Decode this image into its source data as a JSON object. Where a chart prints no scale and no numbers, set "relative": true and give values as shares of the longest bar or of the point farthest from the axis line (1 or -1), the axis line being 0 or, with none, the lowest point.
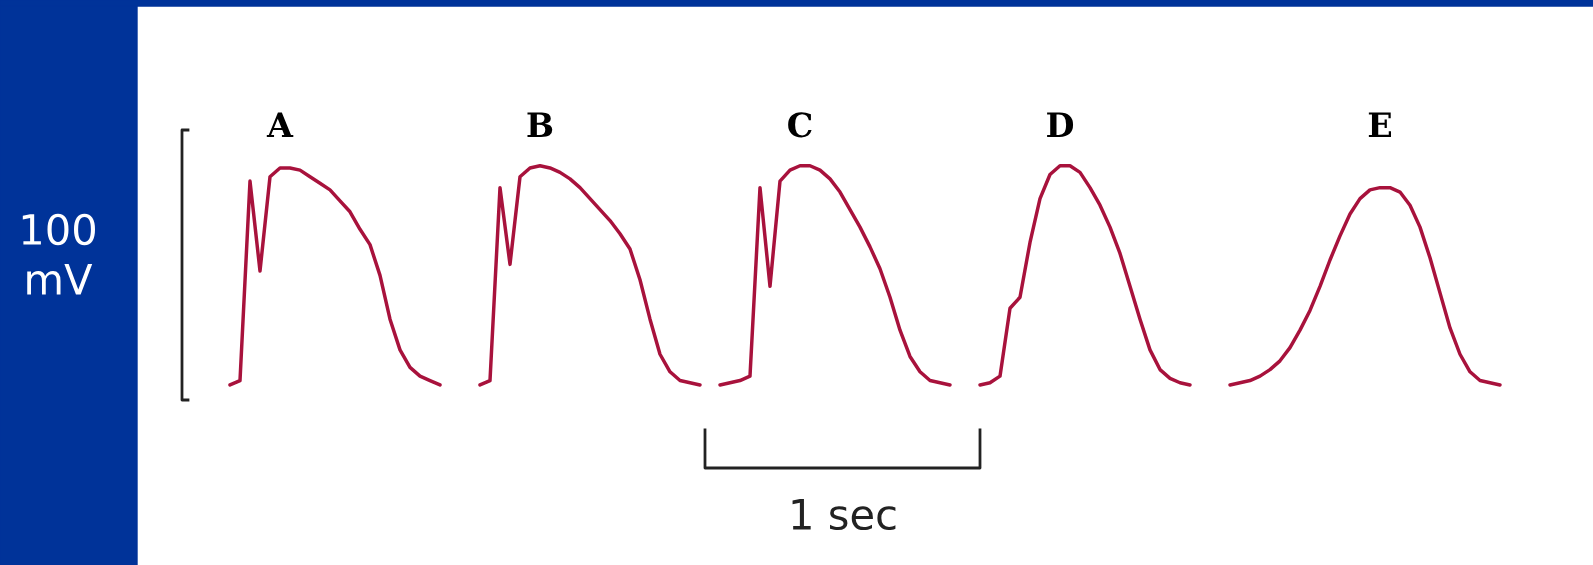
{
  "chart_data": {
    "type": "line",
    "relative": true,
    "categories": [
      null,
      null,
      null,
      null,
      null,
      null,
      null,
      null,
      null,
      null,
      null,
      null,
      null,
      null,
      null,
      null,
      null,
      null,
      null,
      null,
      null,
      null,
      null,
      null,
      null,
      null,
      null,
      null,
      null,
      null,
      null,
      null,
      null,
      null,
      null,
      null,
      null,
      null,
      null,
      null,
      null,
      null,
      null,
      null,
      null,
      null,
      null,
      null,
      null,
      null,
      null,
      null,
      null,
      null,
      null,
      null,
      null,
      null,
      null,
      null,
      null,
      null,
      null,
      null,
      null,
      null,
      null,
      null,
      null,
      null,
      null,
      null,
      null,
      null,
      null,
      null,
      null,
      null,
      null,
      null,
      null,
      null,
      null,
      null,
      null,
      null,
      null,
      null,
      null,
      null,
      null,
      null,
      null,
      null,
      null,
      null,
      null,
      null,
      null,
      null,
      null,
      null,
      null,
      null,
      null,
      null,
      null,
      null,
      null,
      null,
      null,
      null,
      null,
      null,
      null,
      null,
      null,
      null,
      null,
      null,
      null,
      null,
      null,
      null,
      null,
      null,
      null,
      null
    ],
    "series": [
      {
        "name": "A",
        "color": "#a8123c",
        "values": [
          0,
          0.02,
          0.93,
          0.52,
          0.95,
          0.99,
          0.99,
          0.98,
          0.95,
          0.92,
          0.89,
          0.84,
          0.79,
          0.71,
          0.64,
          0.5,
          0.3,
          0.16,
          0.08,
          0.04,
          0.02,
          0,
          null,
          null,
          null,
          null,
          null,
          null,
          null,
          null,
          null,
          null,
          null,
          null,
          null,
          null,
          null,
          null,
          null,
          null,
          null,
          null,
          null,
          null,
          null,
          null,
          null,
          null,
          null,
          null,
          null,
          null,
          null,
          null,
          null,
          null,
          null,
          null,
          null,
          null,
          null,
          null,
          null,
          null,
          null,
          null,
          null,
          null,
          null,
          null,
          null,
          null,
          null,
          null,
          null,
          null,
          null,
          null,
          null,
          null,
          null,
          null,
          null,
          null,
          null,
          null,
          null,
          null,
          null,
          null,
          null,
          null,
          null,
          null,
          null,
          null,
          null,
          null,
          null,
          null,
          null,
          null,
          null,
          null,
          null,
          null,
          null,
          null,
          null,
          null,
          null,
          null,
          null,
          null,
          null,
          null,
          null,
          null,
          null,
          null,
          null,
          null,
          null,
          null,
          null,
          null,
          null,
          null
        ]
      },
      {
        "name": "B",
        "color": "#a8123c",
        "values": [
          null,
          null,
          null,
          null,
          null,
          null,
          null,
          null,
          null,
          null,
          null,
          null,
          null,
          null,
          null,
          null,
          null,
          null,
          null,
          null,
          null,
          null,
          null,
          null,
          null,
          0,
          0.02,
          0.9,
          0.55,
          0.95,
          0.99,
          1,
          0.99,
          0.97,
          0.94,
          0.9,
          0.85,
          0.8,
          0.75,
          0.69,
          0.62,
          0.48,
          0.3,
          0.14,
          0.06,
          0.02,
          0.01,
          0,
          null,
          null,
          null,
          null,
          null,
          null,
          null,
          null,
          null,
          null,
          null,
          null,
          null,
          null,
          null,
          null,
          null,
          null,
          null,
          null,
          null,
          null,
          null,
          null,
          null,
          null,
          null,
          null,
          null,
          null,
          null,
          null,
          null,
          null,
          null,
          null,
          null,
          null,
          null,
          null,
          null,
          null,
          null,
          null,
          null,
          null,
          null,
          null,
          null,
          null,
          null,
          null,
          null,
          null,
          null,
          null,
          null,
          null,
          null,
          null,
          null,
          null,
          null,
          null,
          null,
          null,
          null,
          null,
          null,
          null,
          null,
          null,
          null,
          null,
          null,
          null,
          null,
          null,
          null,
          null
        ]
      },
      {
        "name": "C",
        "color": "#a8123c",
        "values": [
          null,
          null,
          null,
          null,
          null,
          null,
          null,
          null,
          null,
          null,
          null,
          null,
          null,
          null,
          null,
          null,
          null,
          null,
          null,
          null,
          null,
          null,
          null,
          null,
          null,
          null,
          null,
          null,
          null,
          null,
          null,
          null,
          null,
          null,
          null,
          null,
          null,
          null,
          null,
          null,
          null,
          null,
          null,
          null,
          null,
          null,
          null,
          null,
          null,
          0,
          0.01,
          0.02,
          0.04,
          0.9,
          0.45,
          0.93,
          0.98,
          1,
          1,
          0.98,
          0.94,
          0.88,
          0.8,
          0.72,
          0.63,
          0.53,
          0.4,
          0.25,
          0.13,
          0.06,
          0.02,
          0.01,
          0,
          null,
          null,
          null,
          null,
          null,
          null,
          null,
          null,
          null,
          null,
          null,
          null,
          null,
          null,
          null,
          null,
          null,
          null,
          null,
          null,
          null,
          null,
          null,
          null,
          null,
          null,
          null,
          null,
          null,
          null,
          null,
          null,
          null,
          null,
          null,
          null,
          null,
          null,
          null,
          null,
          null,
          null,
          null,
          null,
          null,
          null,
          null,
          null,
          null,
          null,
          null,
          null,
          null,
          null,
          null
        ]
      },
      {
        "name": "D",
        "color": "#a8123c",
        "values": [
          null,
          null,
          null,
          null,
          null,
          null,
          null,
          null,
          null,
          null,
          null,
          null,
          null,
          null,
          null,
          null,
          null,
          null,
          null,
          null,
          null,
          null,
          null,
          null,
          null,
          null,
          null,
          null,
          null,
          null,
          null,
          null,
          null,
          null,
          null,
          null,
          null,
          null,
          null,
          null,
          null,
          null,
          null,
          null,
          null,
          null,
          null,
          null,
          null,
          null,
          null,
          null,
          null,
          null,
          null,
          null,
          null,
          null,
          null,
          null,
          null,
          null,
          null,
          null,
          null,
          null,
          null,
          null,
          null,
          null,
          null,
          null,
          null,
          null,
          null,
          0,
          0.01,
          0.04,
          0.35,
          0.4,
          0.65,
          0.85,
          0.96,
          1,
          1,
          0.97,
          0.9,
          0.82,
          0.72,
          0.6,
          0.45,
          0.3,
          0.16,
          0.07,
          0.03,
          0.01,
          0,
          null,
          null,
          null,
          null,
          null,
          null,
          null,
          null,
          null,
          null,
          null,
          null,
          null,
          null,
          null,
          null,
          null,
          null,
          null,
          null,
          null,
          null,
          null,
          null,
          null,
          null,
          null,
          null,
          null,
          null,
          null
        ]
      },
      {
        "name": "E",
        "color": "#a8123c",
        "values": [
          null,
          null,
          null,
          null,
          null,
          null,
          null,
          null,
          null,
          null,
          null,
          null,
          null,
          null,
          null,
          null,
          null,
          null,
          null,
          null,
          null,
          null,
          null,
          null,
          null,
          null,
          null,
          null,
          null,
          null,
          null,
          null,
          null,
          null,
          null,
          null,
          null,
          null,
          null,
          null,
          null,
          null,
          null,
          null,
          null,
          null,
          null,
          null,
          null,
          null,
          null,
          null,
          null,
          null,
          null,
          null,
          null,
          null,
          null,
          null,
          null,
          null,
          null,
          null,
          null,
          null,
          null,
          null,
          null,
          null,
          null,
          null,
          null,
          null,
          null,
          null,
          null,
          null,
          null,
          null,
          null,
          null,
          null,
          null,
          null,
          null,
          null,
          null,
          null,
          null,
          null,
          null,
          null,
          null,
          null,
          null,
          null,
          null,
          null,
          null,
          0,
          0.01,
          0.02,
          0.04,
          0.07,
          0.11,
          0.17,
          0.25,
          0.34,
          0.45,
          0.57,
          0.68,
          0.78,
          0.85,
          0.89,
          0.9,
          0.9,
          0.88,
          0.82,
          0.72,
          0.58,
          0.42,
          0.26,
          0.14,
          0.06,
          0.02,
          0.01,
          0
        ]
      }
    ],
    "annotations": [
      "100\nmV",
      "1 sec"
    ]
  }
}
